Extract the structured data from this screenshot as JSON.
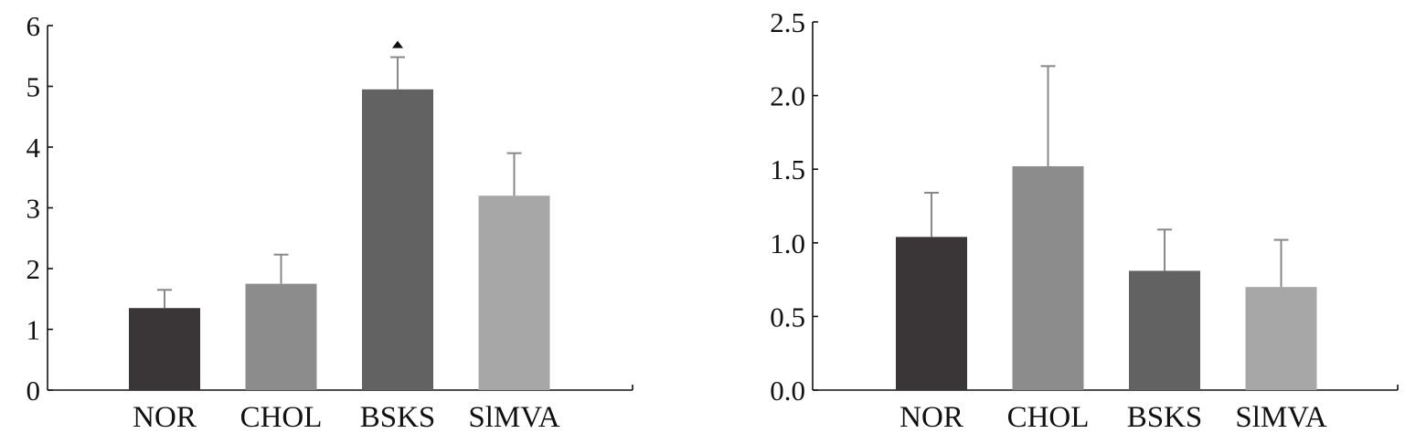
{
  "chart_data": [
    {
      "type": "bar",
      "categories": [
        "NOR",
        "CHOL",
        "BSKS",
        "SlMVA"
      ],
      "values": [
        1.35,
        1.75,
        4.95,
        3.2
      ],
      "error_upper": [
        1.65,
        2.23,
        5.48,
        3.9
      ],
      "colors": [
        "#3a3637",
        "#8d8c8d",
        "#636263",
        "#a8a7a8"
      ],
      "ylim": [
        0,
        6
      ],
      "yticks": [
        "0",
        "1",
        "2",
        "3",
        "4",
        "5",
        "6"
      ],
      "ytick_values": [
        0,
        1,
        2,
        3,
        4,
        5,
        6
      ],
      "annotations": [
        {
          "category": "BSKS",
          "symbol": "▲"
        }
      ],
      "xlabel": "",
      "ylabel": "",
      "title": "",
      "grid": false
    },
    {
      "type": "bar",
      "categories": [
        "NOR",
        "CHOL",
        "BSKS",
        "SlMVA"
      ],
      "values": [
        1.04,
        1.52,
        0.81,
        0.7
      ],
      "error_upper": [
        1.34,
        2.2,
        1.09,
        1.02
      ],
      "colors": [
        "#3a3637",
        "#8d8c8d",
        "#636263",
        "#a8a7a8"
      ],
      "ylim": [
        0,
        2.5
      ],
      "yticks": [
        "0.0",
        "0.5",
        "1.0",
        "1.5",
        "2.0",
        "2.5"
      ],
      "ytick_values": [
        0,
        0.5,
        1.0,
        1.5,
        2.0,
        2.5
      ],
      "annotations": [],
      "xlabel": "",
      "ylabel": "",
      "title": "",
      "grid": false
    }
  ]
}
